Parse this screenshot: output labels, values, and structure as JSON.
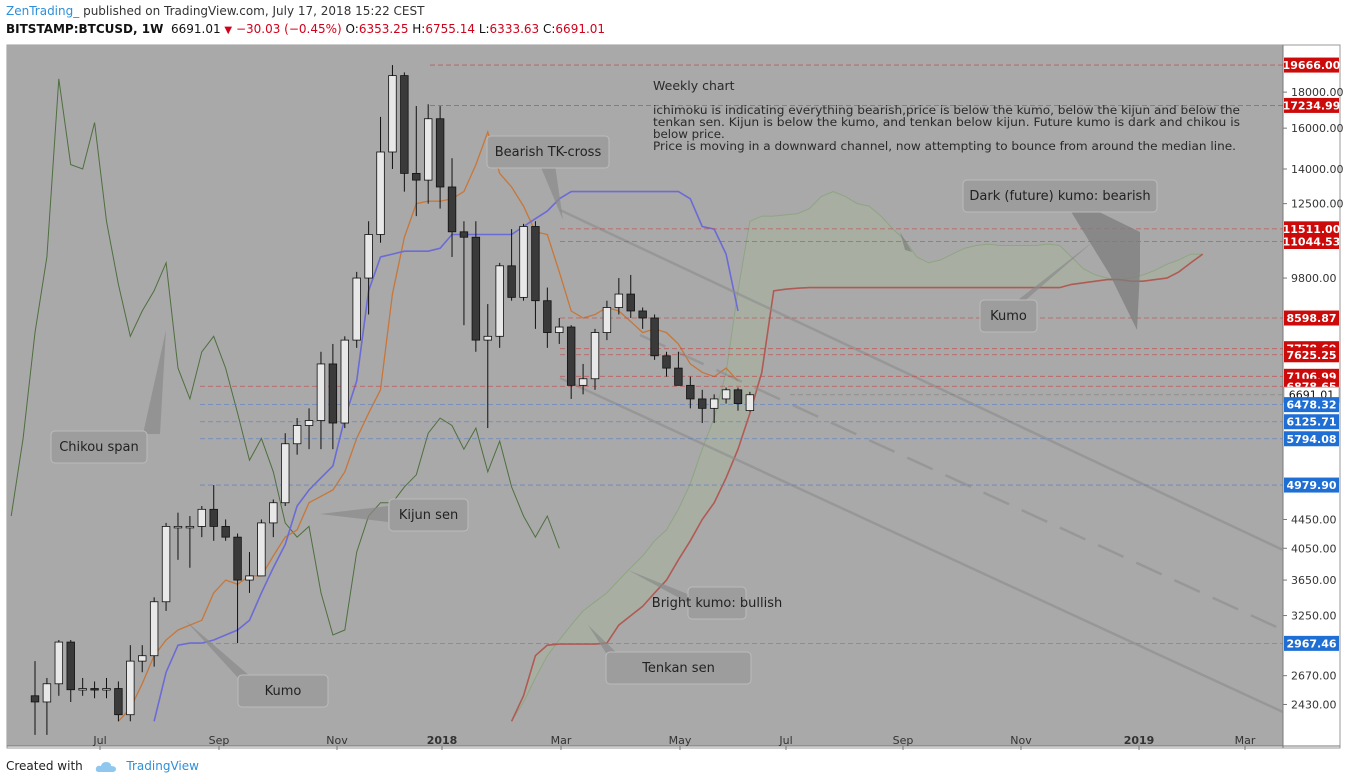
{
  "header": {
    "author": "ZenTrading_",
    "published": "published on TradingView.com, July 17, 2018 15:22 CEST",
    "symbol": "BITSTAMP:BTCUSD, 1W",
    "price": "6691.01",
    "change": "−30.03 (−0.45%)",
    "o_label": "O:",
    "o_val": "6353.25",
    "h_label": "H:",
    "h_val": "6755.14",
    "l_label": "L:",
    "l_val": "6333.63",
    "c_label": "C:",
    "c_val": "6691.01"
  },
  "footer": {
    "created_with": "Created with",
    "brand": "TradingView"
  },
  "colors": {
    "background": "#ffffff",
    "plot_bg": "#a9a9a9",
    "tenkan": "#c7773a",
    "kijun": "#6b6bd6",
    "chikou": "#4f6f3f",
    "senkou_b": "#b05a55",
    "kumo_fill": "#a7b49c",
    "bull_candle": "#e8e8e8",
    "bear_candle": "#3a3a3a",
    "red_badge": "#cc0a0a",
    "blue_badge": "#1f6ed4"
  },
  "chart_data": {
    "type": "candlestick",
    "title": "Weekly chart",
    "y_scale": "log",
    "ylim": [
      2250,
      21000
    ],
    "x_ticks": [
      "Jul",
      "Sep",
      "Nov",
      "2018",
      "Mar",
      "May",
      "Jul",
      "Sep",
      "Nov",
      "2019",
      "Mar"
    ],
    "y_ticks": [
      "18000.00",
      "16000.00",
      "14000.00",
      "12500.00",
      "9800.00",
      "4450.00",
      "4050.00",
      "3650.00",
      "3250.00",
      "2670.00",
      "2430.00"
    ],
    "price_levels": [
      {
        "label": "19666.00",
        "value": 19666,
        "color": "red"
      },
      {
        "label": "17234.99",
        "value": 17234.99,
        "color": "red"
      },
      {
        "label": "11511.00",
        "value": 11511,
        "color": "red"
      },
      {
        "label": "11044.53",
        "value": 11044.53,
        "color": "red"
      },
      {
        "label": "8598.87",
        "value": 8598.87,
        "color": "red"
      },
      {
        "label": "7778.69",
        "value": 7778.69,
        "color": "red"
      },
      {
        "label": "7625.25",
        "value": 7625.25,
        "color": "red"
      },
      {
        "label": "7106.99",
        "value": 7106.99,
        "color": "red"
      },
      {
        "label": "6878.65",
        "value": 6878.65,
        "color": "red"
      },
      {
        "label": "6691.01",
        "value": 6691.01,
        "color": "white"
      },
      {
        "label": "6478.32",
        "value": 6478.32,
        "color": "blue"
      },
      {
        "label": "6125.71",
        "value": 6125.71,
        "color": "blue"
      },
      {
        "label": "5794.08",
        "value": 5794.08,
        "color": "blue"
      },
      {
        "label": "4979.90",
        "value": 4979.9,
        "color": "blue"
      },
      {
        "label": "2967.46",
        "value": 2967.46,
        "color": "blue"
      }
    ],
    "candles": [
      {
        "o": 2500,
        "h": 2800,
        "l": 2200,
        "c": 2450
      },
      {
        "o": 2450,
        "h": 2650,
        "l": 2200,
        "c": 2600
      },
      {
        "o": 2600,
        "h": 3000,
        "l": 2500,
        "c": 2980
      },
      {
        "o": 2980,
        "h": 3000,
        "l": 2450,
        "c": 2550
      },
      {
        "o": 2550,
        "h": 2650,
        "l": 2500,
        "c": 2560
      },
      {
        "o": 2560,
        "h": 2620,
        "l": 2480,
        "c": 2550
      },
      {
        "o": 2550,
        "h": 2650,
        "l": 2480,
        "c": 2560
      },
      {
        "o": 2560,
        "h": 2620,
        "l": 2300,
        "c": 2350
      },
      {
        "o": 2350,
        "h": 2950,
        "l": 2300,
        "c": 2800
      },
      {
        "o": 2800,
        "h": 2950,
        "l": 2700,
        "c": 2850
      },
      {
        "o": 2850,
        "h": 3450,
        "l": 2750,
        "c": 3400
      },
      {
        "o": 3400,
        "h": 4400,
        "l": 3300,
        "c": 4350
      },
      {
        "o": 4350,
        "h": 4550,
        "l": 3900,
        "c": 4350
      },
      {
        "o": 4350,
        "h": 4500,
        "l": 3800,
        "c": 4350
      },
      {
        "o": 4350,
        "h": 4650,
        "l": 4200,
        "c": 4600
      },
      {
        "o": 4600,
        "h": 4980,
        "l": 4150,
        "c": 4350
      },
      {
        "o": 4350,
        "h": 4450,
        "l": 4150,
        "c": 4200
      },
      {
        "o": 4200,
        "h": 4250,
        "l": 2970,
        "c": 3650
      },
      {
        "o": 3650,
        "h": 4000,
        "l": 3500,
        "c": 3700
      },
      {
        "o": 3700,
        "h": 4450,
        "l": 3700,
        "c": 4400
      },
      {
        "o": 4400,
        "h": 4750,
        "l": 4200,
        "c": 4700
      },
      {
        "o": 4700,
        "h": 5900,
        "l": 4650,
        "c": 5700
      },
      {
        "o": 5700,
        "h": 6200,
        "l": 5500,
        "c": 6050
      },
      {
        "o": 6050,
        "h": 6400,
        "l": 5600,
        "c": 6150
      },
      {
        "o": 6150,
        "h": 7700,
        "l": 5600,
        "c": 7400
      },
      {
        "o": 7400,
        "h": 7900,
        "l": 5600,
        "c": 6100
      },
      {
        "o": 6100,
        "h": 8100,
        "l": 6000,
        "c": 8000
      },
      {
        "o": 8000,
        "h": 10000,
        "l": 7800,
        "c": 9800
      },
      {
        "o": 9800,
        "h": 11800,
        "l": 8700,
        "c": 11300
      },
      {
        "o": 11300,
        "h": 16600,
        "l": 11000,
        "c": 14800
      },
      {
        "o": 14800,
        "h": 19666,
        "l": 14000,
        "c": 19000
      },
      {
        "o": 19000,
        "h": 19200,
        "l": 13000,
        "c": 13800
      },
      {
        "o": 13800,
        "h": 17200,
        "l": 12000,
        "c": 13500
      },
      {
        "o": 13500,
        "h": 17300,
        "l": 12500,
        "c": 16500
      },
      {
        "o": 16500,
        "h": 17200,
        "l": 12300,
        "c": 13200
      },
      {
        "o": 13200,
        "h": 14500,
        "l": 10500,
        "c": 11400
      },
      {
        "o": 11400,
        "h": 11800,
        "l": 8400,
        "c": 11200
      },
      {
        "o": 11200,
        "h": 11800,
        "l": 7700,
        "c": 8000
      },
      {
        "o": 8000,
        "h": 9000,
        "l": 6000,
        "c": 8100
      },
      {
        "o": 8100,
        "h": 10300,
        "l": 7800,
        "c": 10200
      },
      {
        "o": 10200,
        "h": 11500,
        "l": 9100,
        "c": 9200
      },
      {
        "o": 9200,
        "h": 11700,
        "l": 9100,
        "c": 11600
      },
      {
        "o": 11600,
        "h": 11800,
        "l": 8300,
        "c": 9100
      },
      {
        "o": 9100,
        "h": 9500,
        "l": 7800,
        "c": 8200
      },
      {
        "o": 8200,
        "h": 8600,
        "l": 7900,
        "c": 8350
      },
      {
        "o": 8350,
        "h": 8400,
        "l": 6600,
        "c": 6900
      },
      {
        "o": 6900,
        "h": 7400,
        "l": 6700,
        "c": 7050
      },
      {
        "o": 7050,
        "h": 8300,
        "l": 6800,
        "c": 8200
      },
      {
        "o": 8200,
        "h": 9100,
        "l": 8000,
        "c": 8900
      },
      {
        "o": 8900,
        "h": 9800,
        "l": 8700,
        "c": 9300
      },
      {
        "o": 9300,
        "h": 9900,
        "l": 8600,
        "c": 8800
      },
      {
        "o": 8800,
        "h": 8900,
        "l": 8300,
        "c": 8600
      },
      {
        "o": 8600,
        "h": 8700,
        "l": 7500,
        "c": 7600
      },
      {
        "o": 7600,
        "h": 7700,
        "l": 7100,
        "c": 7300
      },
      {
        "o": 7300,
        "h": 7700,
        "l": 6900,
        "c": 6900
      },
      {
        "o": 6900,
        "h": 7100,
        "l": 6400,
        "c": 6600
      },
      {
        "o": 6600,
        "h": 6800,
        "l": 6100,
        "c": 6400
      },
      {
        "o": 6400,
        "h": 6700,
        "l": 6100,
        "c": 6600
      },
      {
        "o": 6600,
        "h": 6850,
        "l": 6500,
        "c": 6800
      },
      {
        "o": 6800,
        "h": 6850,
        "l": 6350,
        "c": 6500
      },
      {
        "o": 6353.25,
        "h": 6755.14,
        "l": 6333.63,
        "c": 6691.01
      }
    ],
    "annotations": {
      "weekly": "Weekly chart",
      "notes": [
        "ichimoku is indicating everything bearish,price is below the kumo, below the kijun and below the",
        "tenkan sen. Kijun is below the kumo, and tenkan below kijun. Future kumo is dark and chikou is",
        "below price.",
        "Price is moving in a downward channel, now attempting to bounce from around the median line."
      ],
      "callouts": [
        {
          "text": "Bearish TK-cross"
        },
        {
          "text": "Dark (future) kumo: bearish"
        },
        {
          "text": "Kumo"
        },
        {
          "text": "Chikou span"
        },
        {
          "text": "Kijun sen"
        },
        {
          "text": "Kumo"
        },
        {
          "text": "Bright kumo: bullish"
        },
        {
          "text": "Tenkan sen"
        }
      ]
    }
  }
}
